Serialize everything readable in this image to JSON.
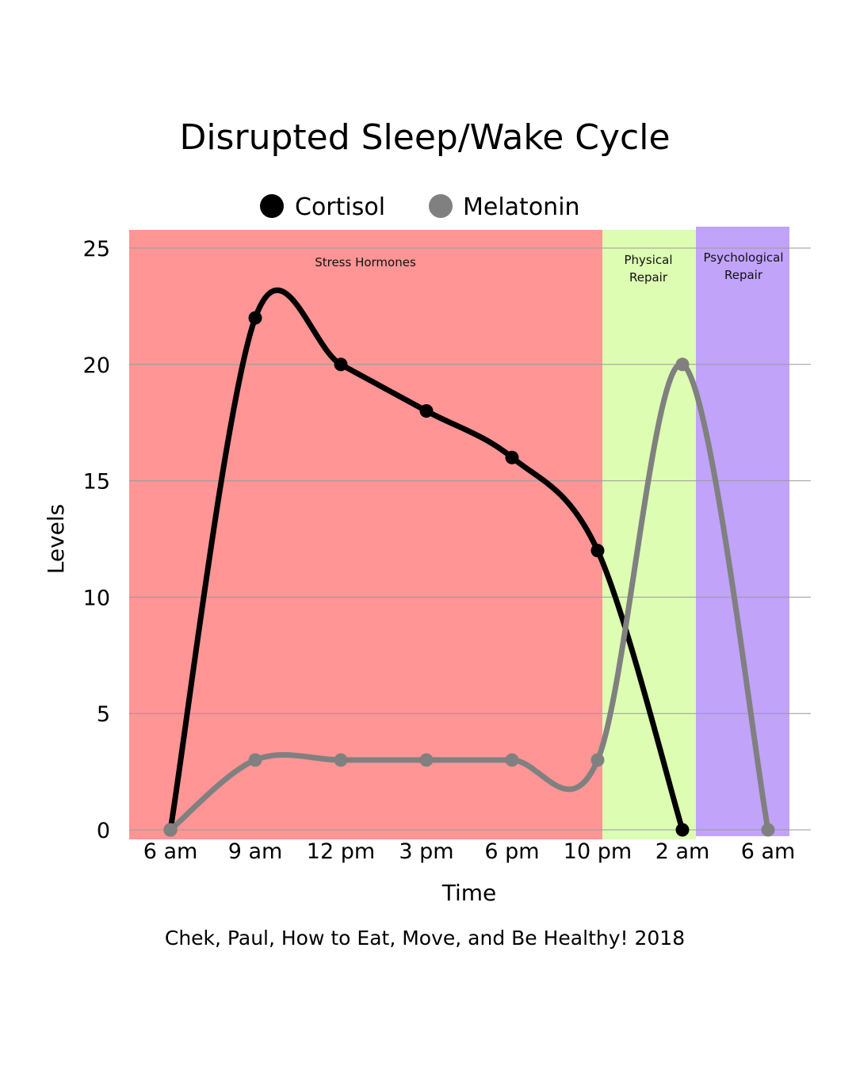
{
  "chart_data": {
    "type": "line",
    "title": "Disrupted Sleep/Wake Cycle",
    "xlabel": "Time",
    "ylabel": "Levels",
    "categories": [
      "6 am",
      "9 am",
      "12 pm",
      "3 pm",
      "6 pm",
      "10 pm",
      "2 am",
      "6 am"
    ],
    "ylim": [
      0,
      25
    ],
    "yticks": [
      0,
      5,
      10,
      15,
      20,
      25
    ],
    "grid": true,
    "legend_position": "top-center",
    "series": [
      {
        "name": "Cortisol",
        "color": "#000000",
        "values": [
          0,
          22,
          20,
          18,
          16,
          12,
          0,
          null
        ]
      },
      {
        "name": "Melatonin",
        "color": "#808080",
        "values": [
          0,
          3,
          3,
          3,
          3,
          3,
          20,
          0
        ]
      }
    ],
    "bands": [
      {
        "label": "Stress Hormones",
        "color": "#ff9595",
        "from": "6 am",
        "to": "10 pm"
      },
      {
        "label": "Physical\nRepair",
        "color": "#ddfdb2",
        "from": "10 pm",
        "to": "2 am"
      },
      {
        "label": "Psychological\nRepair",
        "color": "#c1a3fa",
        "from": "2 am",
        "to": "6 am"
      }
    ],
    "caption": "Chek, Paul, How to Eat, Move, and Be Healthy! 2018"
  }
}
